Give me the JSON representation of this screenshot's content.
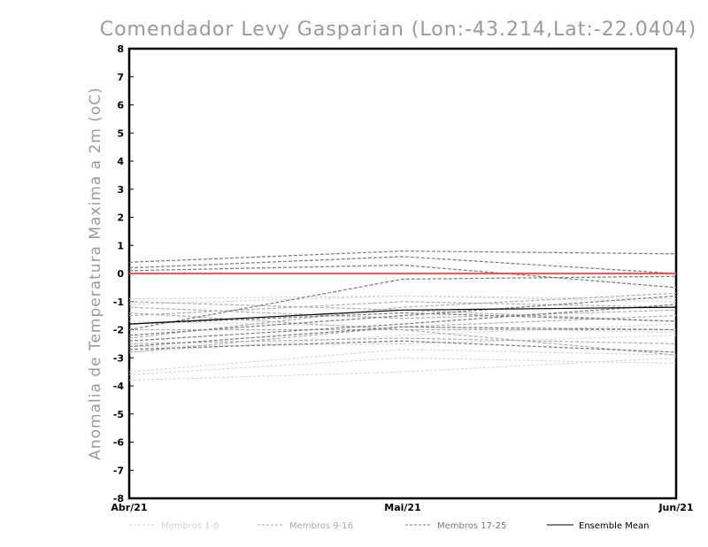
{
  "chart_data": {
    "type": "line",
    "title": "Comendador Levy Gasparian (Lon:-43.214,Lat:-22.0404)",
    "ylabel": "Anomalia de Temperatura Maxima a 2m (oC)",
    "xlabel": "",
    "ylim": [
      -8,
      8
    ],
    "yticks": [
      "-8",
      "-7",
      "-6",
      "-5",
      "-4",
      "-3",
      "-2",
      "-1",
      "0",
      "1",
      "2",
      "3",
      "4",
      "5",
      "6",
      "7",
      "8"
    ],
    "categories": [
      "Abr/21",
      "Mai/21",
      "Jun/21"
    ],
    "zero_line_color": "#ff3b3b",
    "legend": [
      {
        "label": "Membros 1-8",
        "color": "#d2d2d2",
        "dash": true
      },
      {
        "label": "Membros 9-16",
        "color": "#aaaaaa",
        "dash": true
      },
      {
        "label": "Membros 17-25",
        "color": "#7a7a7a",
        "dash": true
      },
      {
        "label": "Ensemble Mean",
        "color": "#000000",
        "dash": false
      }
    ],
    "series": [
      {
        "name": "m1",
        "group": 0,
        "values": [
          -3.6,
          -3.0,
          -3.2
        ]
      },
      {
        "name": "m2",
        "group": 0,
        "values": [
          -3.8,
          -3.5,
          -3.0
        ]
      },
      {
        "name": "m3",
        "group": 0,
        "values": [
          -3.5,
          -2.7,
          -2.9
        ]
      },
      {
        "name": "m4",
        "group": 0,
        "values": [
          -2.6,
          -2.5,
          -2.2
        ]
      },
      {
        "name": "m5",
        "group": 0,
        "values": [
          -1.1,
          -0.8,
          -1.0
        ]
      },
      {
        "name": "m6",
        "group": 0,
        "values": [
          -1.7,
          -1.9,
          -2.1
        ]
      },
      {
        "name": "m7",
        "group": 0,
        "values": [
          -2.8,
          -2.2,
          -1.8
        ]
      },
      {
        "name": "m8",
        "group": 0,
        "values": [
          -0.9,
          -0.8,
          -0.9
        ]
      },
      {
        "name": "m9",
        "group": 1,
        "values": [
          -1.5,
          -1.0,
          -1.2
        ]
      },
      {
        "name": "m10",
        "group": 1,
        "values": [
          -2.3,
          -1.2,
          -0.7
        ]
      },
      {
        "name": "m11",
        "group": 1,
        "values": [
          -2.0,
          -2.0,
          -2.9
        ]
      },
      {
        "name": "m12",
        "group": 1,
        "values": [
          -1.2,
          -1.6,
          -1.3
        ]
      },
      {
        "name": "m13",
        "group": 1,
        "values": [
          -2.5,
          -2.3,
          -2.5
        ]
      },
      {
        "name": "m14",
        "group": 1,
        "values": [
          -1.0,
          -1.3,
          -1.7
        ]
      },
      {
        "name": "m15",
        "group": 1,
        "values": [
          -1.4,
          -2.0,
          -2.0
        ]
      },
      {
        "name": "m16",
        "group": 1,
        "values": [
          -2.8,
          -1.9,
          -1.5
        ]
      },
      {
        "name": "m17",
        "group": 2,
        "values": [
          0.4,
          0.8,
          0.7
        ]
      },
      {
        "name": "m18",
        "group": 2,
        "values": [
          0.2,
          0.6,
          0.0
        ]
      },
      {
        "name": "m19",
        "group": 2,
        "values": [
          -2.2,
          -1.5,
          -0.8
        ]
      },
      {
        "name": "m20",
        "group": 2,
        "values": [
          -2.0,
          -0.2,
          -0.1
        ]
      },
      {
        "name": "m21",
        "group": 2,
        "values": [
          -2.4,
          -1.8,
          -1.1
        ]
      },
      {
        "name": "m22",
        "group": 2,
        "values": [
          -2.6,
          -1.9,
          -2.0
        ]
      },
      {
        "name": "m23",
        "group": 2,
        "values": [
          0.1,
          0.3,
          -0.5
        ]
      },
      {
        "name": "m24",
        "group": 2,
        "values": [
          -1.8,
          -1.4,
          -1.7
        ]
      },
      {
        "name": "m25",
        "group": 2,
        "values": [
          -2.7,
          -2.4,
          -2.8
        ]
      },
      {
        "name": "Ensemble Mean",
        "group": 3,
        "values": [
          -1.8,
          -1.3,
          -1.2
        ]
      }
    ]
  }
}
